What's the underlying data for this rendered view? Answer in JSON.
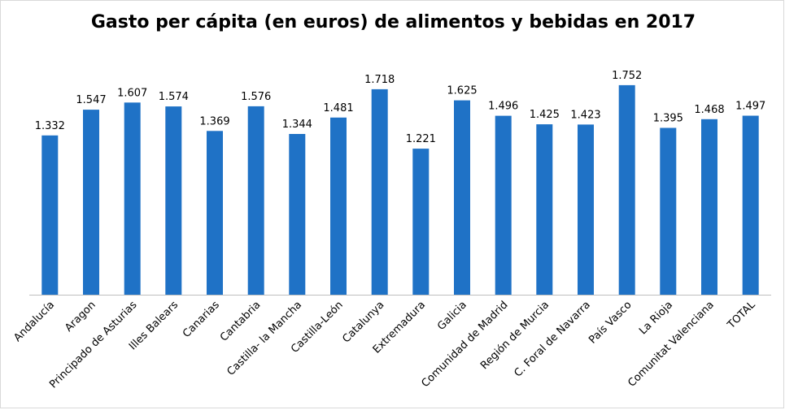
{
  "chart_data": {
    "type": "bar",
    "title": "Gasto per cápita (en euros) de alimentos y bebidas en 2017",
    "xlabel": "",
    "ylabel": "",
    "ylim": [
      0,
      1800
    ],
    "grid": false,
    "legend": "none",
    "bar_color": "#1F72C6",
    "categories": [
      "Andalucía",
      "Aragon",
      "Principado de Asturias",
      "Illes Balears",
      "Canarias",
      "Cantabria",
      "Castilla- la Mancha",
      "Castilla-León",
      "Catalunya",
      "Extremadura",
      "Galicia",
      "Comunidad de Madrid",
      "Región de Murcia",
      "C. Foral de Navarra",
      "País Vasco",
      "La Rioja",
      "Comunitat Valenciana",
      "TOTAL"
    ],
    "values": [
      1332,
      1547,
      1607,
      1574,
      1369,
      1576,
      1344,
      1481,
      1718,
      1221,
      1625,
      1496,
      1425,
      1423,
      1752,
      1395,
      1468,
      1497
    ],
    "value_labels": [
      "1.332",
      "1.547",
      "1.607",
      "1.574",
      "1.369",
      "1.576",
      "1.344",
      "1.481",
      "1.718",
      "1.221",
      "1.625",
      "1.496",
      "1.425",
      "1.423",
      "1.752",
      "1.395",
      "1.468",
      "1.497"
    ]
  }
}
